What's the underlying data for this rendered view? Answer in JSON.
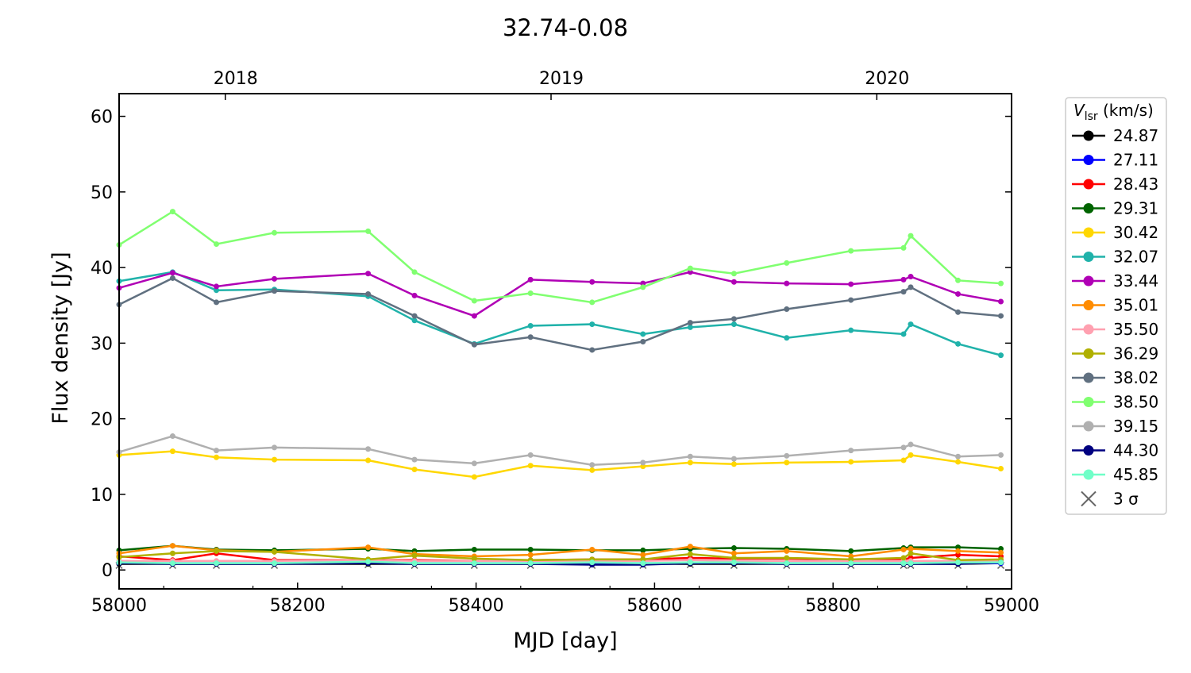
{
  "chart_data": {
    "type": "line",
    "title": "32.74-0.08",
    "xlabel": "MJD [day]",
    "ylabel": "Flux density [Jy]",
    "xlim": [
      58000,
      59000
    ],
    "ylim": [
      -2.5,
      63
    ],
    "xticks": [
      58000,
      58200,
      58400,
      58600,
      58800,
      59000
    ],
    "yticks": [
      0,
      10,
      20,
      30,
      40,
      50,
      60
    ],
    "top_axis": {
      "ticks": [
        {
          "label": "2018",
          "mjd": 58119
        },
        {
          "label": "2019",
          "mjd": 58484
        },
        {
          "label": "2020",
          "mjd": 58849
        }
      ]
    },
    "legend": {
      "title_main": "V",
      "title_sub": "lsr",
      "title_unit": " (km/s)",
      "placement": "outside-right",
      "sigma_label": "3 σ"
    },
    "x": [
      58000,
      58060,
      58109,
      58174,
      58279,
      58331,
      58398,
      58461,
      58530,
      58587,
      58640,
      58689,
      58748,
      58820,
      58879,
      58887,
      58940,
      58988
    ],
    "series": [
      {
        "name": "24.87",
        "color": "#000000",
        "values": [
          0.8,
          0.8,
          0.8,
          0.8,
          0.8,
          0.8,
          0.8,
          0.8,
          0.8,
          0.8,
          0.8,
          0.8,
          0.8,
          0.8,
          0.8,
          0.8,
          0.8,
          0.9
        ]
      },
      {
        "name": "27.11",
        "color": "#0000ff",
        "values": [
          0.9,
          0.9,
          0.9,
          0.9,
          0.9,
          0.9,
          0.9,
          0.9,
          0.9,
          0.9,
          0.9,
          0.9,
          0.9,
          0.9,
          0.9,
          0.9,
          0.9,
          0.9
        ]
      },
      {
        "name": "28.43",
        "color": "#ff0000",
        "values": [
          1.8,
          1.3,
          2.2,
          1.3,
          1.3,
          1.3,
          1.2,
          1.3,
          1.4,
          1.4,
          1.6,
          1.5,
          1.5,
          1.4,
          1.4,
          1.6,
          2.0,
          1.8
        ]
      },
      {
        "name": "29.31",
        "color": "#006400",
        "values": [
          2.6,
          3.2,
          2.7,
          2.6,
          2.8,
          2.5,
          2.7,
          2.7,
          2.6,
          2.6,
          2.8,
          2.9,
          2.8,
          2.5,
          2.9,
          3.0,
          3.0,
          2.8
        ]
      },
      {
        "name": "30.42",
        "color": "#ffd700",
        "values": [
          15.2,
          15.7,
          14.9,
          14.6,
          14.5,
          13.3,
          12.3,
          13.8,
          13.2,
          13.7,
          14.2,
          14.0,
          14.2,
          14.3,
          14.5,
          15.2,
          14.3,
          13.4
        ]
      },
      {
        "name": "32.07",
        "color": "#20b2aa",
        "values": [
          38.2,
          39.4,
          37.0,
          37.1,
          36.2,
          33.0,
          29.9,
          32.3,
          32.5,
          31.2,
          32.1,
          32.5,
          30.7,
          31.7,
          31.2,
          32.5,
          29.9,
          28.4
        ]
      },
      {
        "name": "33.44",
        "color": "#b000b5",
        "values": [
          37.3,
          39.3,
          37.5,
          38.5,
          39.2,
          36.3,
          33.6,
          38.4,
          38.1,
          37.9,
          39.4,
          38.1,
          37.9,
          37.8,
          38.4,
          38.8,
          36.5,
          35.5
        ]
      },
      {
        "name": "35.01",
        "color": "#ff8c00",
        "values": [
          2.2,
          3.2,
          2.6,
          2.4,
          3.0,
          2.1,
          1.8,
          2.0,
          2.7,
          2.0,
          3.1,
          2.2,
          2.5,
          1.8,
          2.7,
          2.8,
          2.5,
          2.3
        ]
      },
      {
        "name": "35.50",
        "color": "#ffa0b0",
        "values": [
          1.2,
          1.2,
          1.2,
          1.2,
          1.3,
          1.2,
          1.2,
          1.2,
          1.2,
          1.2,
          1.3,
          1.2,
          1.2,
          1.2,
          1.2,
          1.2,
          1.2,
          1.2
        ]
      },
      {
        "name": "36.29",
        "color": "#b0b000",
        "values": [
          1.7,
          2.2,
          2.5,
          2.4,
          1.4,
          1.9,
          1.5,
          1.3,
          1.4,
          1.4,
          2.1,
          1.6,
          1.6,
          1.4,
          1.6,
          2.2,
          1.3,
          1.4
        ]
      },
      {
        "name": "38.02",
        "color": "#607080",
        "values": [
          35.1,
          38.6,
          35.4,
          36.9,
          36.5,
          33.6,
          29.8,
          30.8,
          29.1,
          30.2,
          32.7,
          33.2,
          34.5,
          35.7,
          36.8,
          37.4,
          34.1,
          33.6
        ]
      },
      {
        "name": "38.50",
        "color": "#80ff70",
        "values": [
          43.0,
          47.4,
          43.1,
          44.6,
          44.8,
          39.4,
          35.6,
          36.6,
          35.4,
          37.4,
          39.9,
          39.2,
          40.6,
          42.2,
          42.6,
          44.2,
          38.3,
          37.9
        ]
      },
      {
        "name": "39.15",
        "color": "#b0b0b0",
        "values": [
          15.6,
          17.7,
          15.8,
          16.2,
          16.0,
          14.6,
          14.1,
          15.2,
          13.9,
          14.2,
          15.0,
          14.7,
          15.1,
          15.8,
          16.2,
          16.6,
          15.0,
          15.2
        ]
      },
      {
        "name": "44.30",
        "color": "#000080",
        "values": [
          0.9,
          0.8,
          0.8,
          0.8,
          0.9,
          0.8,
          0.8,
          0.8,
          0.7,
          0.7,
          0.9,
          0.9,
          0.8,
          0.8,
          0.8,
          0.8,
          0.8,
          1.0
        ]
      },
      {
        "name": "45.85",
        "color": "#70ffc8",
        "values": [
          1.0,
          0.9,
          0.9,
          0.9,
          1.1,
          0.9,
          0.9,
          0.9,
          1.0,
          0.9,
          1.0,
          1.0,
          0.9,
          0.9,
          0.9,
          0.9,
          1.0,
          1.0
        ]
      }
    ],
    "sigma3_values": [
      0.6,
      0.6,
      0.6,
      0.6,
      0.7,
      0.6,
      0.6,
      0.6,
      0.6,
      0.6,
      0.7,
      0.6,
      0.6,
      0.6,
      0.6,
      0.6,
      0.6,
      0.6
    ]
  }
}
